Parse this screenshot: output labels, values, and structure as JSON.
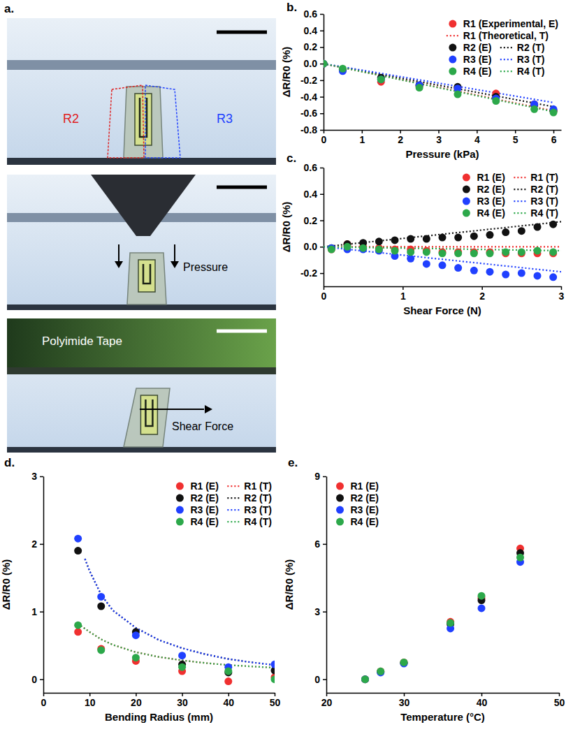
{
  "panel_a": {
    "label": "a.",
    "photos": [
      [
        "R2",
        "R3"
      ],
      [
        "Pressure"
      ],
      [
        "Polyimide Tape",
        "Shear Force"
      ]
    ]
  },
  "chart_data": [
    {
      "label": "b.",
      "type": "scatter",
      "x_label": "Pressure (kPa)",
      "y_label": "ΔR/R0 (%)",
      "xlim": [
        0,
        6.2
      ],
      "xticks": [
        0,
        1,
        2,
        3,
        4,
        5,
        6
      ],
      "ylim": [
        -0.8,
        0.6
      ],
      "yticks": [
        -0.8,
        -0.6,
        -0.4,
        -0.2,
        {
          "value": 0,
          "label": "0.0"
        },
        0.2,
        0.4,
        0.6
      ],
      "legend": "upper right",
      "series": [
        {
          "name": "R1 (Experimental, E)",
          "type": "scatter",
          "marker": "circle",
          "color": "#f03030",
          "x": [
            0,
            0.5,
            1.5,
            2.5,
            3.5,
            4.5,
            5.5,
            6
          ],
          "values": [
            0,
            -0.08,
            -0.22,
            -0.27,
            -0.29,
            -0.36,
            -0.49,
            -0.57
          ]
        },
        {
          "name": "R1 (Theoretical, T)",
          "type": "line",
          "line_style": "dotted",
          "color": "#f03030",
          "x": [
            0,
            6
          ],
          "values": [
            0,
            -0.57
          ]
        },
        {
          "name": "R2 (E)",
          "type": "scatter",
          "marker": "circle",
          "color": "#111111",
          "x": [
            0,
            0.5,
            1.5,
            2.5,
            3.5,
            4.5,
            5.5,
            6
          ],
          "values": [
            0,
            -0.07,
            -0.17,
            -0.26,
            -0.28,
            -0.4,
            -0.5,
            -0.57
          ]
        },
        {
          "name": "R2 (T)",
          "type": "line",
          "line_style": "dotted",
          "color": "#111111",
          "x": [
            0,
            6
          ],
          "values": [
            0,
            -0.52
          ]
        },
        {
          "name": "R3 (E)",
          "type": "scatter",
          "marker": "circle",
          "color": "#2040ff",
          "x": [
            0,
            0.5,
            1.5,
            2.5,
            3.5,
            4.5,
            5.5,
            6
          ],
          "values": [
            0,
            -0.09,
            -0.19,
            -0.26,
            -0.3,
            -0.42,
            -0.49,
            -0.55
          ]
        },
        {
          "name": "R3 (T)",
          "type": "line",
          "line_style": "dotted",
          "color": "#2040ff",
          "x": [
            0,
            6
          ],
          "values": [
            0,
            -0.47
          ]
        },
        {
          "name": "R4 (E)",
          "type": "scatter",
          "marker": "circle",
          "color": "#2ca84a",
          "x": [
            0,
            0.5,
            1.5,
            2.5,
            3.5,
            4.5,
            5.5,
            6
          ],
          "values": [
            0,
            -0.06,
            -0.19,
            -0.29,
            -0.37,
            -0.45,
            -0.55,
            -0.59
          ]
        },
        {
          "name": "R4 (T)",
          "type": "line",
          "line_style": "dotted",
          "color": "#2ca84a",
          "x": [
            0,
            6
          ],
          "values": [
            0,
            -0.58
          ]
        }
      ]
    },
    {
      "label": "c.",
      "type": "scatter",
      "x_label": "Shear Force (N)",
      "y_label": "ΔR/R0 (%)",
      "xlim": [
        0,
        3
      ],
      "xticks": [
        0,
        1,
        2,
        3
      ],
      "ylim": [
        -0.3,
        0.6
      ],
      "yticks": [
        -0.2,
        {
          "value": 0,
          "label": "0.0"
        },
        0.2,
        0.4,
        0.6
      ],
      "legend": "upper right",
      "series": [
        {
          "name": "R1 (E)",
          "type": "scatter",
          "marker": "circle",
          "color": "#f03030",
          "x": [
            0.1,
            0.3,
            0.5,
            0.7,
            0.9,
            1.1,
            1.3,
            1.5,
            1.7,
            1.9,
            2.1,
            2.3,
            2.5,
            2.7,
            2.9
          ],
          "values": [
            -0.02,
            0.02,
            0,
            -0.01,
            -0.02,
            -0.02,
            -0.03,
            -0.04,
            -0.04,
            -0.04,
            -0.04,
            -0.05,
            -0.05,
            -0.05,
            -0.05
          ]
        },
        {
          "name": "R1 (T)",
          "type": "line",
          "line_style": "dotted",
          "color": "#f03030",
          "x": [
            0,
            3
          ],
          "values": [
            0,
            0
          ]
        },
        {
          "name": "R2 (E)",
          "type": "scatter",
          "marker": "circle",
          "color": "#111111",
          "x": [
            0.1,
            0.3,
            0.5,
            0.7,
            0.9,
            1.1,
            1.3,
            1.5,
            1.7,
            1.9,
            2.1,
            2.3,
            2.5,
            2.7,
            2.9
          ],
          "values": [
            -0.01,
            0.02,
            0.03,
            0.04,
            0.05,
            0.06,
            0.06,
            0.07,
            0.07,
            0.08,
            0.09,
            0.11,
            0.12,
            0.15,
            0.17
          ]
        },
        {
          "name": "R2 (T)",
          "type": "line",
          "line_style": "dotted",
          "color": "#111111",
          "x": [
            0,
            3
          ],
          "values": [
            0,
            0.19
          ]
        },
        {
          "name": "R3 (E)",
          "type": "scatter",
          "marker": "circle",
          "color": "#2040ff",
          "x": [
            0.1,
            0.3,
            0.5,
            0.7,
            0.9,
            1.1,
            1.3,
            1.5,
            1.7,
            1.9,
            2.1,
            2.3,
            2.5,
            2.7,
            2.9
          ],
          "values": [
            -0.01,
            -0.02,
            -0.02,
            -0.03,
            -0.07,
            -0.09,
            -0.13,
            -0.14,
            -0.16,
            -0.18,
            -0.19,
            -0.21,
            -0.2,
            -0.22,
            -0.23
          ]
        },
        {
          "name": "R3 (T)",
          "type": "line",
          "line_style": "dotted",
          "color": "#2040ff",
          "x": [
            0,
            3
          ],
          "values": [
            0,
            -0.19
          ]
        },
        {
          "name": "R4 (E)",
          "type": "scatter",
          "marker": "circle",
          "color": "#2ca84a",
          "x": [
            0.1,
            0.3,
            0.5,
            0.7,
            0.9,
            1.1,
            1.3,
            1.5,
            1.7,
            1.9,
            2.1,
            2.3,
            2.5,
            2.7,
            2.9
          ],
          "values": [
            -0.02,
            0,
            -0.01,
            -0.02,
            -0.03,
            -0.04,
            -0.04,
            -0.05,
            -0.05,
            -0.05,
            -0.05,
            -0.04,
            -0.04,
            -0.03,
            -0.04
          ]
        },
        {
          "name": "R4 (T)",
          "type": "line",
          "line_style": "dotted",
          "color": "#2ca84a",
          "x": [
            0,
            3
          ],
          "values": [
            0,
            -0.03
          ]
        }
      ]
    },
    {
      "label": "d.",
      "type": "scatter",
      "x_label": "Bending Radius (mm)",
      "y_label": "ΔR/R0 (%)",
      "xlim": [
        0,
        50
      ],
      "xticks": [
        0,
        10,
        20,
        30,
        40,
        50
      ],
      "ylim": [
        -0.2,
        3
      ],
      "yticks": [
        0,
        1,
        2,
        3
      ],
      "legend": "upper right",
      "series": [
        {
          "name": "R1 (E)",
          "type": "scatter",
          "marker": "circle",
          "color": "#f03030",
          "x": [
            7.5,
            12.5,
            20,
            30,
            40,
            50
          ],
          "values": [
            0.7,
            0.45,
            0.27,
            0.12,
            -0.03,
            0.03
          ]
        },
        {
          "name": "R1 (T)",
          "type": "line",
          "line_style": "dotted",
          "color": "#f03030",
          "x": [
            7.5,
            10,
            12.5,
            15,
            20,
            25,
            30,
            35,
            40,
            45,
            50
          ],
          "values": [
            0.82,
            0.7,
            0.59,
            0.51,
            0.4,
            0.33,
            0.28,
            0.24,
            0.21,
            0.19,
            0.17
          ]
        },
        {
          "name": "R2 (E)",
          "type": "scatter",
          "marker": "circle",
          "color": "#111111",
          "x": [
            7.5,
            12.5,
            20,
            30,
            40,
            50
          ],
          "values": [
            1.9,
            1.08,
            0.7,
            0.22,
            0.1,
            0.13
          ]
        },
        {
          "name": "R2 (T)",
          "type": "line",
          "line_style": "dotted",
          "color": "#111111",
          "x": [
            9,
            10,
            12.5,
            15,
            20,
            25,
            30,
            35,
            40,
            45,
            50
          ],
          "values": [
            1.78,
            1.6,
            1.25,
            1.02,
            0.76,
            0.58,
            0.46,
            0.37,
            0.3,
            0.25,
            0.21
          ]
        },
        {
          "name": "R3 (E)",
          "type": "scatter",
          "marker": "circle",
          "color": "#2040ff",
          "x": [
            7.5,
            12.5,
            20,
            30,
            40,
            50
          ],
          "values": [
            2.08,
            1.22,
            0.65,
            0.35,
            0.18,
            0.22
          ]
        },
        {
          "name": "R3 (T)",
          "type": "line",
          "line_style": "dotted",
          "color": "#2040ff",
          "x": [
            9,
            10,
            12.5,
            15,
            20,
            25,
            30,
            35,
            40,
            45,
            50
          ],
          "values": [
            1.78,
            1.6,
            1.25,
            1.02,
            0.76,
            0.58,
            0.46,
            0.37,
            0.3,
            0.25,
            0.21
          ]
        },
        {
          "name": "R4 (E)",
          "type": "scatter",
          "marker": "circle",
          "color": "#2ca84a",
          "x": [
            7.5,
            12.5,
            20,
            30,
            40,
            50
          ],
          "values": [
            0.8,
            0.43,
            0.32,
            0.18,
            0.12,
            0
          ]
        },
        {
          "name": "R4 (T)",
          "type": "line",
          "line_style": "dotted",
          "color": "#2ca84a",
          "x": [
            7.5,
            10,
            12.5,
            15,
            20,
            25,
            30,
            35,
            40,
            45,
            50
          ],
          "values": [
            0.82,
            0.7,
            0.59,
            0.51,
            0.4,
            0.33,
            0.28,
            0.24,
            0.21,
            0.19,
            0.17
          ]
        }
      ]
    },
    {
      "label": "e.",
      "type": "scatter",
      "x_label": "Temperature (°C)",
      "y_label": "ΔR/R0 (%)",
      "xlim": [
        20,
        50
      ],
      "xticks": [
        20,
        30,
        40,
        50
      ],
      "ylim": [
        -0.6,
        9
      ],
      "yticks": [
        0,
        3,
        6,
        9
      ],
      "legend": "upper left",
      "series": [
        {
          "name": "R1 (E)",
          "type": "scatter",
          "marker": "circle",
          "color": "#f03030",
          "x": [
            25,
            27,
            30,
            36,
            40,
            45
          ],
          "values": [
            0,
            0.35,
            0.75,
            2.55,
            3.6,
            5.8
          ]
        },
        {
          "name": "R2 (E)",
          "type": "scatter",
          "marker": "circle",
          "color": "#111111",
          "x": [
            25,
            27,
            30,
            36,
            40,
            45
          ],
          "values": [
            0,
            0.32,
            0.72,
            2.45,
            3.5,
            5.6
          ]
        },
        {
          "name": "R3 (E)",
          "type": "scatter",
          "marker": "circle",
          "color": "#2040ff",
          "x": [
            25,
            27,
            30,
            36,
            40,
            45
          ],
          "values": [
            0,
            0.3,
            0.7,
            2.25,
            3.15,
            5.2
          ]
        },
        {
          "name": "R4 (E)",
          "type": "scatter",
          "marker": "circle",
          "color": "#2ca84a",
          "x": [
            25,
            27,
            30,
            36,
            40,
            45
          ],
          "values": [
            0,
            0.35,
            0.75,
            2.5,
            3.7,
            5.4
          ]
        }
      ]
    }
  ]
}
